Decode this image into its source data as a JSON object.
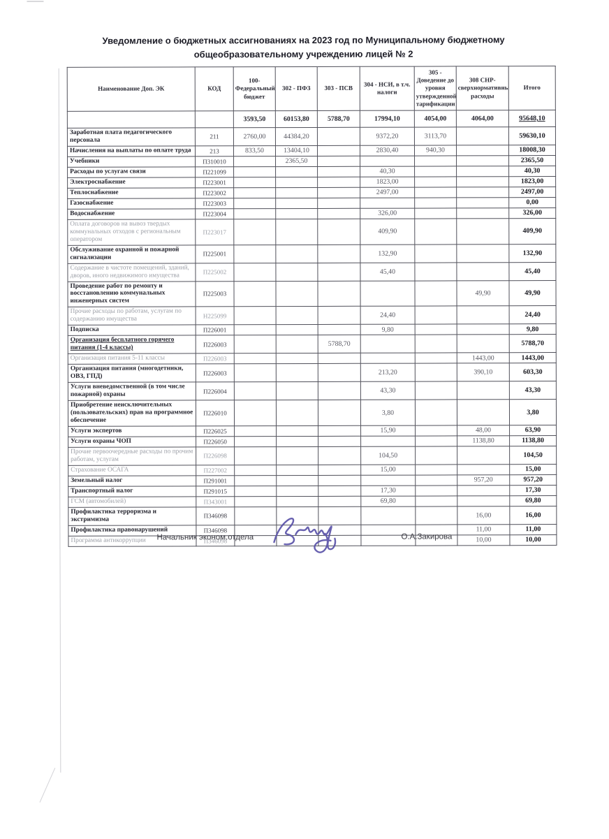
{
  "page": {
    "title": "Уведомление о бюджетных ассигнованиях на 2023 год по Муниципальному бюджетному общеобразовательному учреждению лицей № 2"
  },
  "table": {
    "header": {
      "name": "Наименование Доп. ЭК",
      "code": "КОД",
      "cols": [
        "100-Федеральный бюджет",
        "302 - ПФЗ",
        "303 - ПСВ",
        "304 - НСИ, в т.ч. налоги",
        "305 - Доведение до уровня утвержденной тарификации",
        "308 СНР-сверхнормативные расходы",
        "Итого"
      ]
    },
    "rows": [
      {
        "name": "",
        "code": "",
        "v": [
          "3593,50",
          "60153,80",
          "5788,70",
          "17994,10",
          "4054,00",
          "4064,00"
        ],
        "total": "95648,10",
        "totals": true,
        "u_total": true
      },
      {
        "name": "Заработная плата педагогического персонала",
        "code": "211",
        "v": [
          "2760,00",
          "44384,20",
          "",
          "9372,20",
          "3113,70",
          ""
        ],
        "total": "59630,10"
      },
      {
        "name": "Начисления на выплаты по оплате труда",
        "code": "213",
        "v": [
          "833,50",
          "13404,10",
          "",
          "2830,40",
          "940,30",
          ""
        ],
        "total": "18008,30"
      },
      {
        "name": "Учебники",
        "code": "П310010",
        "v": [
          "",
          "2365,50",
          "",
          "",
          "",
          ""
        ],
        "total": "2365,50"
      },
      {
        "name": "Расходы по услугам связи",
        "code": "П221099",
        "v": [
          "",
          "",
          "",
          "40,30",
          "",
          ""
        ],
        "total": "40,30"
      },
      {
        "name": "Электроснабжение",
        "code": "П223001",
        "v": [
          "",
          "",
          "",
          "1823,00",
          "",
          ""
        ],
        "total": "1823,00"
      },
      {
        "name": "Теплоснабжение",
        "code": "П223002",
        "v": [
          "",
          "",
          "",
          "2497,00",
          "",
          ""
        ],
        "total": "2497,00"
      },
      {
        "name": "Газоснабжение",
        "code": "П223003",
        "v": [
          "",
          "",
          "",
          "",
          "",
          ""
        ],
        "total": "0,00"
      },
      {
        "name": "Водоснабжение",
        "code": "П223004",
        "v": [
          "",
          "",
          "",
          "326,00",
          "",
          ""
        ],
        "total": "326,00"
      },
      {
        "name": "Оплата договоров на вывоз твердых коммунальных отходов с региональным оператором",
        "code": "П223017",
        "v": [
          "",
          "",
          "",
          "409,90",
          "",
          ""
        ],
        "total": "409,90",
        "faded": true
      },
      {
        "name": "Обслуживание охранной и пожарной сигнализации",
        "code": "П225001",
        "v": [
          "",
          "",
          "",
          "132,90",
          "",
          ""
        ],
        "total": "132,90"
      },
      {
        "name": "Содержание в чистоте помещений, зданий, дворов, иного недвижимого имущества",
        "code": "П225002",
        "v": [
          "",
          "",
          "",
          "45,40",
          "",
          ""
        ],
        "total": "45,40",
        "faded": true
      },
      {
        "name": "Проведение работ по ремонту и восстановлению коммунальных инженерных систем",
        "code": "П225003",
        "v": [
          "",
          "",
          "",
          "",
          "",
          "49,90"
        ],
        "total": "49,90"
      },
      {
        "name": "Прочие расходы по работам, услугам по содержанию имущества",
        "code": "Н225099",
        "v": [
          "",
          "",
          "",
          "24,40",
          "",
          ""
        ],
        "total": "24,40",
        "faded": true
      },
      {
        "name": "Подписка",
        "code": "П226001",
        "v": [
          "",
          "",
          "",
          "9,80",
          "",
          ""
        ],
        "total": "9,80"
      },
      {
        "name": "Организация бесплатного горячего питания (1-4 классы)",
        "code": "П226003",
        "v": [
          "",
          "",
          "5788,70",
          "",
          "",
          ""
        ],
        "total": "5788,70",
        "u_name": true
      },
      {
        "name": "Организация питания 5-11 классы",
        "code": "П226003",
        "v": [
          "",
          "",
          "",
          "",
          "",
          "1443,00"
        ],
        "total": "1443,00",
        "faded": true
      },
      {
        "name": "Организация питания (многодетники, ОВЗ, ГПД)",
        "code": "П226003",
        "v": [
          "",
          "",
          "",
          "213,20",
          "",
          "390,10"
        ],
        "total": "603,30"
      },
      {
        "name": "Услуги вневедомственной (в том числе пожарной) охраны",
        "code": "П226004",
        "v": [
          "",
          "",
          "",
          "43,30",
          "",
          ""
        ],
        "total": "43,30"
      },
      {
        "name": "Приобретение неисключительных (пользовательских) прав на программное обеспечение",
        "code": "П226010",
        "v": [
          "",
          "",
          "",
          "3,80",
          "",
          ""
        ],
        "total": "3,80"
      },
      {
        "name": "Услуги экспертов",
        "code": "П226025",
        "v": [
          "",
          "",
          "",
          "15,90",
          "",
          "48,00"
        ],
        "total": "63,90"
      },
      {
        "name": "Услуги охраны ЧОП",
        "code": "П226050",
        "v": [
          "",
          "",
          "",
          "",
          "",
          "1138,80"
        ],
        "total": "1138,80"
      },
      {
        "name": "Прочие первоочередные расходы по прочим работам, услугам",
        "code": "П226098",
        "v": [
          "",
          "",
          "",
          "104,50",
          "",
          ""
        ],
        "total": "104,50",
        "faded": true
      },
      {
        "name": "Страхование ОСАГА",
        "code": "П227002",
        "v": [
          "",
          "",
          "",
          "15,00",
          "",
          ""
        ],
        "total": "15,00",
        "faded": true
      },
      {
        "name": "Земельный налог",
        "code": "П291001",
        "v": [
          "",
          "",
          "",
          "",
          "",
          "957,20"
        ],
        "total": "957,20"
      },
      {
        "name": "Транспортный налог",
        "code": "П291015",
        "v": [
          "",
          "",
          "",
          "17,30",
          "",
          ""
        ],
        "total": "17,30"
      },
      {
        "name": "ГСМ (автомобилей)",
        "code": "П343001",
        "v": [
          "",
          "",
          "",
          "69,80",
          "",
          ""
        ],
        "total": "69,80",
        "faded": true
      },
      {
        "name": "Профилактика терроризма и экстримизма",
        "code": "П346098",
        "v": [
          "",
          "",
          "",
          "",
          "",
          "16,00"
        ],
        "total": "16,00"
      },
      {
        "name": "Профилактика правонарушений",
        "code": "П346098",
        "v": [
          "",
          "",
          "",
          "",
          "",
          "11,00"
        ],
        "total": "11,00"
      },
      {
        "name": "Программа антикоррупции",
        "code": "П346098",
        "v": [
          "",
          "",
          "",
          "",
          "",
          "10,00"
        ],
        "total": "10,00",
        "faded": true
      }
    ]
  },
  "footer": {
    "position": "Начальник эконом.отдела",
    "name": "О.А.Закирова",
    "signature_icon": "handwritten-signature",
    "ink_color": "#5a52a8"
  }
}
